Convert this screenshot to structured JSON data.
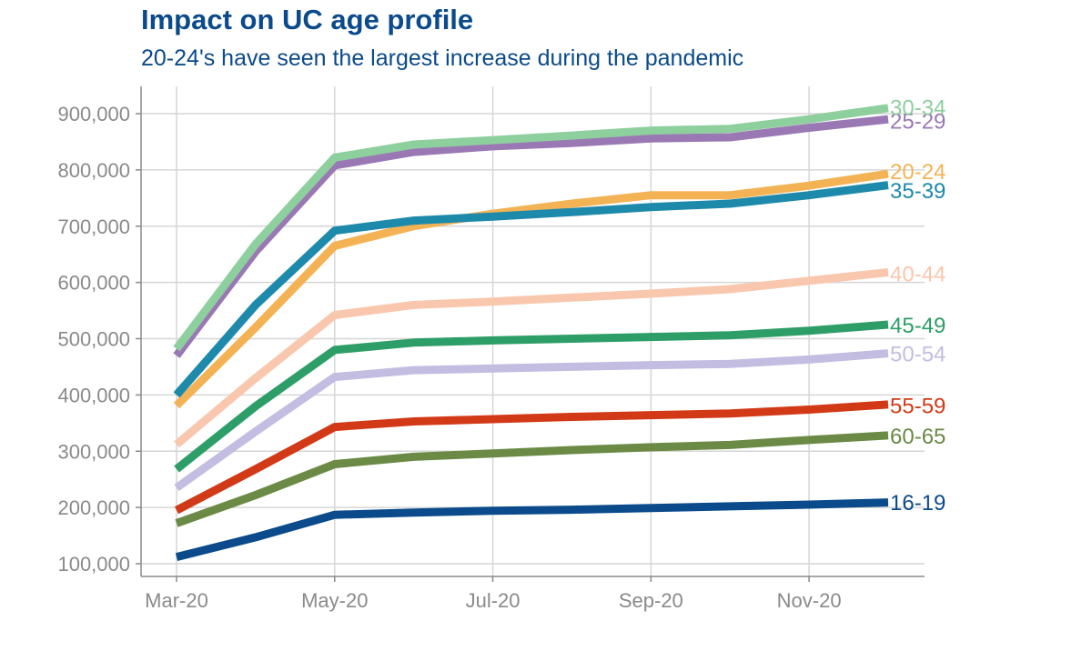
{
  "title": "Impact on UC age profile",
  "subtitle": "20-24's have seen the largest increase during the pandemic",
  "chart_data": {
    "type": "line",
    "title": "Impact on UC age profile",
    "subtitle": "20-24's have seen the largest increase during the pandemic",
    "x": [
      "2020-03",
      "2020-04",
      "2020-05",
      "2020-06",
      "2020-07",
      "2020-08",
      "2020-09",
      "2020-10",
      "2020-11",
      "2020-12"
    ],
    "xticks": [
      {
        "x": "2020-03",
        "label": "Mar-20"
      },
      {
        "x": "2020-05",
        "label": "May-20"
      },
      {
        "x": "2020-07",
        "label": "Jul-20"
      },
      {
        "x": "2020-09",
        "label": "Sep-20"
      },
      {
        "x": "2020-11",
        "label": "Nov-20"
      }
    ],
    "ylim": [
      85000,
      950000
    ],
    "yticks": [
      100000,
      200000,
      300000,
      400000,
      500000,
      600000,
      700000,
      800000,
      900000
    ],
    "ytick_labels": [
      "100,000",
      "200,000",
      "300,000",
      "400,000",
      "500,000",
      "600,000",
      "700,000",
      "800,000",
      "900,000"
    ],
    "grid": true,
    "legend": "direct labels at line ends",
    "series": [
      {
        "name": "60-65",
        "color": "#6a8a45",
        "values": [
          172000,
          222000,
          277000,
          290000,
          296000,
          302000,
          307000,
          311000,
          320000,
          328000
        ]
      },
      {
        "name": "16-19",
        "color": "#0b4a8b",
        "values": [
          112000,
          147000,
          187000,
          191000,
          194000,
          196000,
          199000,
          202000,
          205000,
          209000
        ]
      },
      {
        "name": "55-59",
        "color": "#d23a17",
        "values": [
          195000,
          268000,
          343000,
          353000,
          357000,
          361000,
          364000,
          367000,
          374000,
          383000
        ]
      },
      {
        "name": "50-54",
        "color": "#c3bde2",
        "values": [
          235000,
          335000,
          432000,
          444000,
          447000,
          450000,
          453000,
          455000,
          463000,
          474000
        ]
      },
      {
        "name": "45-49",
        "color": "#2e9e68",
        "values": [
          268000,
          380000,
          480000,
          493000,
          497000,
          500000,
          503000,
          506000,
          514000,
          525000
        ]
      },
      {
        "name": "40-44",
        "color": "#f9c7ad",
        "values": [
          312000,
          430000,
          542000,
          560000,
          566000,
          573000,
          580000,
          588000,
          603000,
          618000
        ]
      },
      {
        "name": "20-24",
        "color": "#f3b355",
        "values": [
          381000,
          520000,
          665000,
          700000,
          722000,
          740000,
          755000,
          755000,
          772000,
          793000
        ]
      },
      {
        "name": "35-39",
        "color": "#1e8aab",
        "values": [
          400000,
          560000,
          692000,
          710000,
          717000,
          725000,
          734000,
          740000,
          755000,
          773000
        ]
      },
      {
        "name": "25-29",
        "color": "#9a78b4",
        "values": [
          470000,
          655000,
          808000,
          832000,
          842000,
          848000,
          856000,
          858000,
          875000,
          890000
        ]
      },
      {
        "name": "30-34",
        "color": "#8ecf9e",
        "values": [
          482000,
          668000,
          822000,
          845000,
          853000,
          861000,
          870000,
          873000,
          890000,
          910000
        ]
      }
    ],
    "label_values": {
      "30-34": 912000,
      "25-29": 888000,
      "20-24": 798000,
      "35-39": 764000,
      "40-44": 616000,
      "45-49": 525000,
      "50-54": 474000,
      "55-59": 382000,
      "60-65": 328000,
      "16-19": 210000
    }
  }
}
